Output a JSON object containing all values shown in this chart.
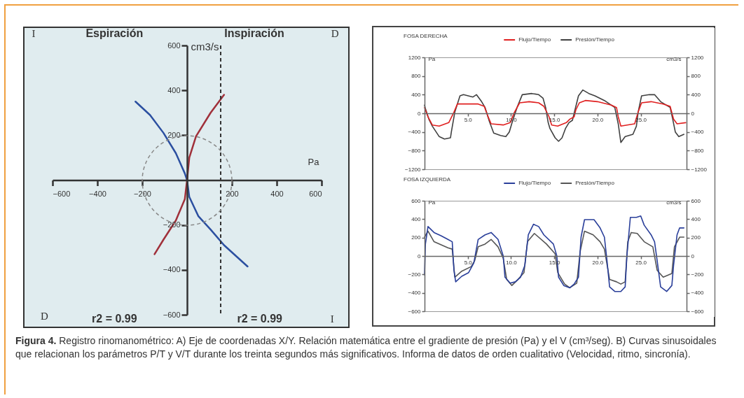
{
  "chart_data": [
    {
      "type": "line",
      "xlabel": "Pa",
      "ylabel": "cm3/s",
      "xlim": [
        -600,
        600
      ],
      "ylim": [
        -600,
        600
      ],
      "xticks": [
        -600,
        -400,
        -200,
        200,
        400,
        600
      ],
      "yticks": [
        -600,
        -400,
        -200,
        200,
        400,
        600
      ],
      "series": [
        {
          "color": "#2b4fa0",
          "x": [
            -230,
            -165,
            -105,
            -50,
            -10,
            0,
            10,
            50,
            105,
            165,
            270
          ],
          "values": [
            350,
            290,
            210,
            120,
            30,
            0,
            -75,
            -160,
            -220,
            -290,
            -385
          ]
        },
        {
          "color": "#a0303a",
          "x": [
            -145,
            -105,
            -50,
            -10,
            0,
            10,
            40,
            105,
            165
          ],
          "values": [
            -330,
            -265,
            -180,
            -85,
            0,
            100,
            195,
            300,
            380
          ]
        }
      ],
      "ref_lines": [
        {
          "axis": "x",
          "value": 150,
          "color": "#333333",
          "line_style": "dashed"
        }
      ],
      "annotations": [
        "I",
        "Espiración",
        "Inspiración",
        "D",
        "D",
        "r2 = 0.99",
        "r2 = 0.99",
        "I"
      ]
    },
    {
      "type": "line",
      "title": "FOSA DERECHA",
      "ylabel": "Pa",
      "y2label": "cm3/s",
      "xlim": [
        0,
        30.3
      ],
      "ylim": [
        -1200,
        1200
      ],
      "y2lim": [
        -1200,
        1200
      ],
      "xticks": [
        {
          "value": 5,
          "label": "5.0"
        },
        {
          "value": 10,
          "label": "10.0"
        },
        {
          "value": 15,
          "label": "15.0"
        },
        {
          "value": 20,
          "label": "20.0"
        },
        {
          "value": 25,
          "label": "25.0"
        }
      ],
      "yticks": [
        -1200,
        -800,
        -400,
        0,
        400,
        800,
        1200
      ],
      "y2ticks": [
        -1200,
        -800,
        -400,
        0,
        400,
        800,
        1200
      ],
      "legend": "top",
      "series": [
        {
          "name": "Flujo/Tiempo",
          "color": "#e02020",
          "axis": "y2",
          "x": [
            0,
            0.4,
            0.9,
            1.7,
            2.8,
            3.4,
            3.8,
            5.0,
            6.2,
            6.9,
            7.3,
            7.7,
            9.1,
            9.9,
            10.4,
            11.0,
            12.1,
            13.2,
            13.8,
            14.4,
            14.7,
            15.4,
            16.4,
            16.8,
            17.3,
            17.5,
            17.9,
            18.6,
            20.0,
            21.6,
            22.2,
            22.4,
            22.7,
            24.3,
            24.7,
            25.1,
            26.2,
            27.6,
            28.4,
            28.8,
            29.2,
            30.2
          ],
          "values": [
            125,
            -75,
            -250,
            -275,
            -200,
            25,
            200,
            200,
            200,
            150,
            -50,
            -225,
            -250,
            -200,
            25,
            225,
            250,
            225,
            150,
            -75,
            -250,
            -275,
            -200,
            -125,
            -75,
            75,
            225,
            275,
            250,
            175,
            125,
            -75,
            -275,
            -225,
            25,
            225,
            250,
            200,
            150,
            -125,
            -225,
            -200
          ]
        },
        {
          "name": "Presión/Tiempo",
          "color": "#404040",
          "x": [
            0,
            0.1,
            0.5,
            0.9,
            1.7,
            2.3,
            3.0,
            3.1,
            3.5,
            4.1,
            4.5,
            5.6,
            6.0,
            6.6,
            7.0,
            7.5,
            8.0,
            8.8,
            9.4,
            9.8,
            10.2,
            10.7,
            11.3,
            12.4,
            13.2,
            13.7,
            14.0,
            14.3,
            14.5,
            15.1,
            15.5,
            15.9,
            16.3,
            16.7,
            17.1,
            17.4,
            17.8,
            18.3,
            19.0,
            19.7,
            20.8,
            21.6,
            22.0,
            22.4,
            22.7,
            23.2,
            24.1,
            24.5,
            24.7,
            25.1,
            26.0,
            26.6,
            27.3,
            28.4,
            28.7,
            29.0,
            29.4,
            30.0
          ],
          "values": [
            175,
            100,
            -125,
            -275,
            -500,
            -550,
            -525,
            -400,
            25,
            375,
            400,
            350,
            400,
            250,
            125,
            -175,
            -425,
            -475,
            -500,
            -400,
            -150,
            125,
            400,
            425,
            400,
            325,
            125,
            -200,
            -325,
            -525,
            -600,
            -525,
            -325,
            -200,
            -150,
            75,
            375,
            500,
            425,
            375,
            275,
            175,
            125,
            -225,
            -625,
            -500,
            -450,
            -275,
            25,
            375,
            400,
            400,
            250,
            125,
            -125,
            -400,
            -500,
            -450
          ]
        }
      ]
    },
    {
      "type": "line",
      "title": "FOSA IZQUIERDA",
      "ylabel": "Pa",
      "y2label": "cm3/s",
      "xlim": [
        0,
        30.3
      ],
      "ylim": [
        -600,
        600
      ],
      "y2lim": [
        -600,
        600
      ],
      "xticks": [
        {
          "value": 5,
          "label": "5.0"
        },
        {
          "value": 10,
          "label": "10.0"
        },
        {
          "value": 15,
          "label": "15.0"
        },
        {
          "value": 20,
          "label": "20.0"
        },
        {
          "value": 25,
          "label": "25.0"
        }
      ],
      "yticks": [
        -600,
        -400,
        -200,
        0,
        200,
        400,
        600
      ],
      "y2ticks": [
        -600,
        -400,
        -200,
        0,
        200,
        400,
        600
      ],
      "legend": "top",
      "series": [
        {
          "name": "Flujo/Tiempo",
          "color": "#2a3f9a",
          "axis": "y2",
          "x": [
            0,
            0.1,
            0.4,
            1.1,
            1.9,
            2.7,
            3.2,
            3.4,
            3.6,
            4.3,
            5.1,
            5.7,
            6.2,
            7.0,
            7.7,
            8.5,
            9.1,
            9.3,
            9.9,
            10.5,
            11.1,
            11.6,
            12.0,
            12.6,
            13.2,
            13.8,
            14.9,
            15.3,
            15.5,
            16.1,
            16.8,
            17.3,
            17.8,
            18.1,
            18.5,
            19.1,
            19.6,
            20.3,
            20.8,
            21.1,
            21.4,
            22.0,
            22.7,
            23.2,
            23.4,
            23.8,
            24.5,
            25.0,
            25.4,
            26.2,
            26.6,
            26.9,
            27.3,
            28.0,
            28.6,
            28.8,
            29.2,
            29.5,
            30.0
          ],
          "values": [
            -205,
            130,
            320,
            255,
            220,
            180,
            155,
            -155,
            -280,
            -220,
            -180,
            -75,
            180,
            230,
            255,
            180,
            0,
            -230,
            -295,
            -280,
            -230,
            -100,
            230,
            345,
            320,
            230,
            130,
            0,
            -230,
            -320,
            -345,
            -305,
            -230,
            205,
            395,
            395,
            395,
            305,
            205,
            -50,
            -335,
            -385,
            -385,
            -335,
            0,
            420,
            420,
            435,
            335,
            230,
            155,
            -50,
            -335,
            -385,
            -320,
            -100,
            230,
            305,
            305
          ]
        },
        {
          "name": "Presión/Tiempo",
          "color": "#555555",
          "x": [
            0,
            0.4,
            1.1,
            2.7,
            3.2,
            3.5,
            4.3,
            5.4,
            5.8,
            6.2,
            7.0,
            7.7,
            8.5,
            9.1,
            9.5,
            10.1,
            10.8,
            11.5,
            11.9,
            12.7,
            14.1,
            15.1,
            15.4,
            16.2,
            16.8,
            17.6,
            18.0,
            18.5,
            19.5,
            20.3,
            20.8,
            21.4,
            22.2,
            22.7,
            23.2,
            23.5,
            23.9,
            24.6,
            25.4,
            26.4,
            26.9,
            27.6,
            28.6,
            28.9,
            29.5,
            30.0
          ],
          "values": [
            205,
            270,
            155,
            90,
            75,
            -230,
            -165,
            -115,
            -50,
            100,
            130,
            180,
            100,
            -25,
            -255,
            -320,
            -255,
            -180,
            155,
            245,
            130,
            25,
            -180,
            -305,
            -345,
            -295,
            50,
            270,
            230,
            155,
            75,
            -255,
            -280,
            -305,
            -280,
            155,
            255,
            245,
            155,
            100,
            -155,
            -230,
            -190,
            100,
            205,
            205
          ]
        }
      ],
      "annotations": [
        "Figura 4.",
        "Registro rinomanométrico: A) Eje de coordenadas X/Y. Relación matemática entre el gradiente de presión (Pa) y el V (cm³/seg). B) Curvas sinusoidales que relacionan los parámetros P/T y V/T durante los treinta segundos más significativos. Informa de datos de orden cualitativo (Velocidad, ritmo, sincronía)."
      ]
    }
  ]
}
